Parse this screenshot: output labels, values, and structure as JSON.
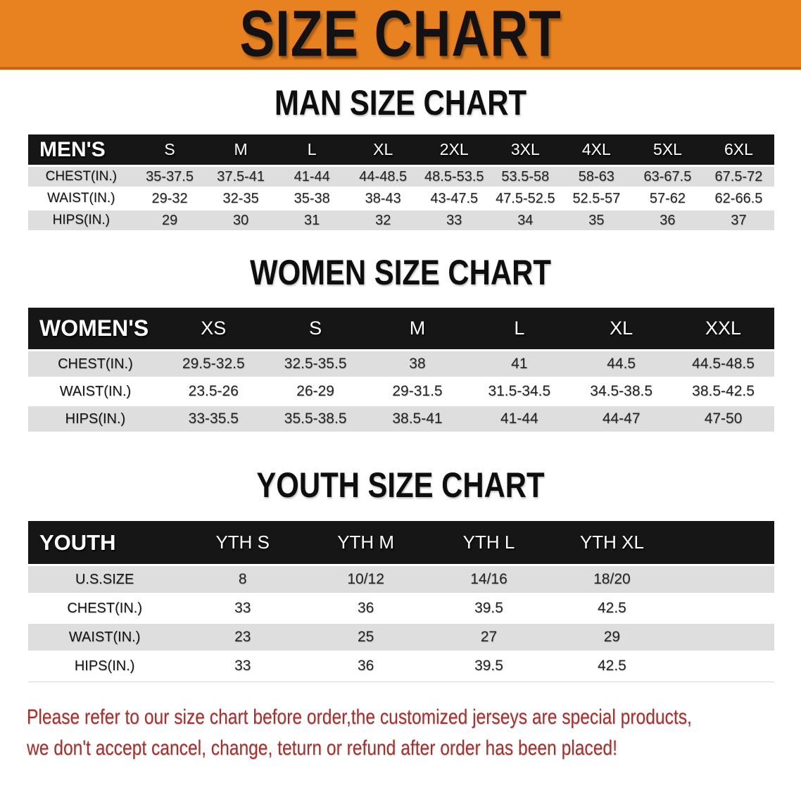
{
  "banner": {
    "title": "SIZE CHART",
    "bg_color": "#e8811f",
    "border_color": "#c2641a",
    "text_color": "#121212"
  },
  "colors": {
    "table_header_bg": "#161616",
    "row_stripe": "#dedede",
    "disclaimer_text": "#a6302c"
  },
  "chart_data": [
    {
      "type": "table",
      "title": "MAN SIZE CHART",
      "corner": "MEN'S",
      "columns": [
        "S",
        "M",
        "L",
        "XL",
        "2XL",
        "3XL",
        "4XL",
        "5XL",
        "6XL"
      ],
      "rows": [
        {
          "label": "CHEST(IN.)",
          "values": [
            "35-37.5",
            "37.5-41",
            "41-44",
            "44-48.5",
            "48.5-53.5",
            "53.5-58",
            "58-63",
            "63-67.5",
            "67.5-72"
          ]
        },
        {
          "label": "WAIST(IN.)",
          "values": [
            "29-32",
            "32-35",
            "35-38",
            "38-43",
            "43-47.5",
            "47.5-52.5",
            "52.5-57",
            "57-62",
            "62-66.5"
          ]
        },
        {
          "label": "HIPS(IN.)",
          "values": [
            "29",
            "30",
            "31",
            "32",
            "33",
            "34",
            "35",
            "36",
            "37"
          ]
        }
      ]
    },
    {
      "type": "table",
      "title": "WOMEN SIZE CHART",
      "corner": "WOMEN'S",
      "columns": [
        "XS",
        "S",
        "M",
        "L",
        "XL",
        "XXL"
      ],
      "rows": [
        {
          "label": "CHEST(IN.)",
          "values": [
            "29.5-32.5",
            "32.5-35.5",
            "38",
            "41",
            "44.5",
            "44.5-48.5"
          ]
        },
        {
          "label": "WAIST(IN.)",
          "values": [
            "23.5-26",
            "26-29",
            "29-31.5",
            "31.5-34.5",
            "34.5-38.5",
            "38.5-42.5"
          ]
        },
        {
          "label": "HIPS(IN.)",
          "values": [
            "33-35.5",
            "35.5-38.5",
            "38.5-41",
            "41-44",
            "44-47",
            "47-50"
          ]
        }
      ]
    },
    {
      "type": "table",
      "title": "YOUTH SIZE CHART",
      "corner": "YOUTH",
      "columns": [
        "YTH S",
        "YTH M",
        "YTH L",
        "YTH XL"
      ],
      "rows": [
        {
          "label": "U.S.SIZE",
          "values": [
            "8",
            "10/12",
            "14/16",
            "18/20"
          ]
        },
        {
          "label": "CHEST(IN.)",
          "values": [
            "33",
            "36",
            "39.5",
            "42.5"
          ]
        },
        {
          "label": "WAIST(IN.)",
          "values": [
            "23",
            "25",
            "27",
            "29"
          ]
        },
        {
          "label": "HIPS(IN.)",
          "values": [
            "33",
            "36",
            "39.5",
            "42.5"
          ]
        }
      ]
    }
  ],
  "disclaimer": {
    "line1": "Please refer to our size chart before order,the customized jerseys are special products,",
    "line2": "we don't accept cancel, change, teturn or refund after order has been placed!"
  }
}
